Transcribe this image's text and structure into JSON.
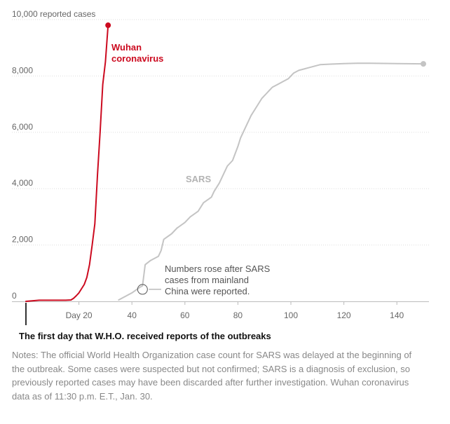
{
  "chart_data": {
    "type": "line",
    "y_axis_label": "reported cases",
    "xlim": [
      0,
      155
    ],
    "ylim": [
      0,
      10000
    ],
    "x_ticks": [
      {
        "value": 20,
        "label": "Day 20"
      },
      {
        "value": 40,
        "label": "40"
      },
      {
        "value": 60,
        "label": "60"
      },
      {
        "value": 80,
        "label": "80"
      },
      {
        "value": 100,
        "label": "100"
      },
      {
        "value": 120,
        "label": "120"
      },
      {
        "value": 140,
        "label": "140"
      }
    ],
    "y_ticks": [
      {
        "value": 0,
        "label": "0"
      },
      {
        "value": 2000,
        "label": "2,000"
      },
      {
        "value": 4000,
        "label": "4,000"
      },
      {
        "value": 6000,
        "label": "6,000"
      },
      {
        "value": 8000,
        "label": "8,000"
      },
      {
        "value": 10000,
        "label": "10,000"
      }
    ],
    "series": [
      {
        "name": "Wuhan coronavirus",
        "label_lines": [
          "Wuhan",
          "coronavirus"
        ],
        "color": "#cc0a1f",
        "x": [
          0,
          5,
          10,
          15,
          17,
          18,
          19,
          20,
          21,
          22,
          23,
          24,
          25,
          26,
          27,
          28,
          29,
          30,
          31
        ],
        "y": [
          0,
          40,
          41,
          41,
          50,
          110,
          200,
          300,
          450,
          600,
          850,
          1300,
          2000,
          2750,
          4500,
          6000,
          7700,
          8500,
          9800
        ]
      },
      {
        "name": "SARS",
        "label_lines": [
          "SARS"
        ],
        "color": "#c4c4c4",
        "x": [
          35,
          40,
          43,
          44,
          45,
          47,
          49,
          50,
          51,
          52,
          55,
          57,
          60,
          62,
          65,
          67,
          70,
          71,
          73,
          75,
          76,
          78,
          80,
          81,
          83,
          85,
          87,
          89,
          91,
          93,
          95,
          97,
          99,
          101,
          103,
          105,
          107,
          109,
          111,
          115,
          120,
          125,
          130,
          140,
          150
        ],
        "y": [
          50,
          300,
          500,
          550,
          1300,
          1450,
          1550,
          1600,
          1800,
          2200,
          2400,
          2600,
          2800,
          3000,
          3200,
          3500,
          3700,
          3900,
          4200,
          4600,
          4800,
          5000,
          5500,
          5800,
          6200,
          6600,
          6900,
          7200,
          7400,
          7600,
          7700,
          7800,
          7900,
          8100,
          8200,
          8250,
          8300,
          8350,
          8400,
          8420,
          8440,
          8450,
          8450,
          8440,
          8430
        ]
      }
    ],
    "annotations": [
      {
        "lines": [
          "Numbers rose after SARS",
          "cases from mainland",
          "China were reported."
        ],
        "x": 44,
        "y": 500
      },
      {
        "text": "The first day that W.H.O. received reports of the outbreaks",
        "x": 0
      }
    ]
  },
  "notes": "Notes: The official World Health Organization case count for SARS was delayed at the beginning of the outbreak. Some cases were suspected but not confirmed; SARS is a diagnosis of exclusion, so previously reported cases may have been discarded after further investigation. Wuhan coronavirus data as of 11:30 p.m. E.T., Jan. 30."
}
